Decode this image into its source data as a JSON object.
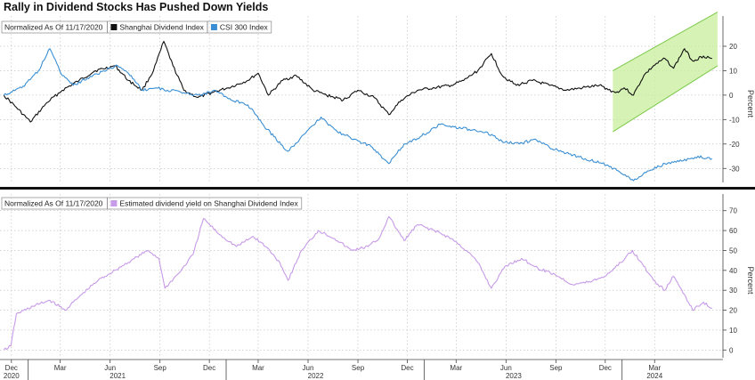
{
  "title": "Rally in Dividend Stocks Has Pushed Down Yields",
  "colors": {
    "shanghai": "#111111",
    "csi": "#3a8fd4",
    "yield": "#c79be8",
    "channel_fill": "#c8ef9c",
    "channel_line": "#7cc94a"
  },
  "chart_data": [
    {
      "type": "line",
      "legend_title": "Normalized As Of 11/17/2020",
      "ylabel": "Percent",
      "ylim": [
        -35,
        28
      ],
      "yticks": [
        -30,
        -20,
        -10,
        0,
        10,
        20
      ],
      "series": [
        {
          "name": "Shanghai Dividend Index",
          "color": "#111111",
          "points": [
            [
              "2020-11-17",
              0
            ],
            [
              "2020-12-10",
              -5
            ],
            [
              "2021-01-05",
              -11
            ],
            [
              "2021-02-05",
              -3
            ],
            [
              "2021-03-05",
              2
            ],
            [
              "2021-04-05",
              6
            ],
            [
              "2021-05-05",
              10
            ],
            [
              "2021-06-10",
              12
            ],
            [
              "2021-07-05",
              6
            ],
            [
              "2021-07-30",
              2
            ],
            [
              "2021-08-20",
              10
            ],
            [
              "2021-09-08",
              22
            ],
            [
              "2021-09-25",
              12
            ],
            [
              "2021-10-15",
              2
            ],
            [
              "2021-11-10",
              -1
            ],
            [
              "2021-12-05",
              1
            ],
            [
              "2022-01-05",
              3
            ],
            [
              "2022-02-10",
              6
            ],
            [
              "2022-03-01",
              9
            ],
            [
              "2022-03-20",
              0
            ],
            [
              "2022-04-15",
              6
            ],
            [
              "2022-05-10",
              8
            ],
            [
              "2022-06-10",
              2
            ],
            [
              "2022-07-05",
              0
            ],
            [
              "2022-08-05",
              -2
            ],
            [
              "2022-09-01",
              2
            ],
            [
              "2022-10-01",
              -1
            ],
            [
              "2022-10-28",
              -8
            ],
            [
              "2022-11-20",
              -2
            ],
            [
              "2022-12-20",
              2
            ],
            [
              "2023-01-20",
              3
            ],
            [
              "2023-02-20",
              4
            ],
            [
              "2023-03-15",
              6
            ],
            [
              "2023-04-10",
              10
            ],
            [
              "2023-05-05",
              17
            ],
            [
              "2023-05-25",
              8
            ],
            [
              "2023-06-20",
              4
            ],
            [
              "2023-07-20",
              6
            ],
            [
              "2023-08-20",
              4
            ],
            [
              "2023-09-20",
              2
            ],
            [
              "2023-10-20",
              3
            ],
            [
              "2023-11-20",
              4
            ],
            [
              "2023-12-20",
              1
            ],
            [
              "2024-01-05",
              3
            ],
            [
              "2024-01-22",
              0
            ],
            [
              "2024-02-10",
              8
            ],
            [
              "2024-02-28",
              12
            ],
            [
              "2024-03-20",
              15
            ],
            [
              "2024-04-05",
              11
            ],
            [
              "2024-04-25",
              19
            ],
            [
              "2024-05-10",
              14
            ],
            [
              "2024-05-30",
              16
            ],
            [
              "2024-06-15",
              15
            ]
          ]
        },
        {
          "name": "CSI 300 Index",
          "color": "#3a8fd4",
          "points": [
            [
              "2020-11-17",
              0
            ],
            [
              "2020-12-20",
              3
            ],
            [
              "2021-01-20",
              10
            ],
            [
              "2021-02-10",
              19
            ],
            [
              "2021-03-05",
              8
            ],
            [
              "2021-03-25",
              4
            ],
            [
              "2021-04-20",
              7
            ],
            [
              "2021-05-20",
              10
            ],
            [
              "2021-06-15",
              12
            ],
            [
              "2021-07-10",
              8
            ],
            [
              "2021-07-30",
              2
            ],
            [
              "2021-08-25",
              3
            ],
            [
              "2021-09-15",
              2
            ],
            [
              "2021-10-15",
              1
            ],
            [
              "2021-11-15",
              0
            ],
            [
              "2021-12-10",
              2
            ],
            [
              "2022-01-10",
              -2
            ],
            [
              "2022-02-10",
              -4
            ],
            [
              "2022-03-10",
              -12
            ],
            [
              "2022-03-30",
              -17
            ],
            [
              "2022-04-25",
              -23
            ],
            [
              "2022-05-25",
              -16
            ],
            [
              "2022-06-25",
              -9
            ],
            [
              "2022-07-25",
              -15
            ],
            [
              "2022-08-25",
              -18
            ],
            [
              "2022-09-25",
              -21
            ],
            [
              "2022-10-28",
              -28
            ],
            [
              "2022-11-25",
              -20
            ],
            [
              "2022-12-25",
              -17
            ],
            [
              "2023-01-30",
              -12
            ],
            [
              "2023-02-25",
              -13
            ],
            [
              "2023-03-25",
              -14
            ],
            [
              "2023-04-25",
              -15
            ],
            [
              "2023-05-25",
              -19
            ],
            [
              "2023-06-25",
              -20
            ],
            [
              "2023-07-25",
              -18
            ],
            [
              "2023-08-25",
              -22
            ],
            [
              "2023-09-25",
              -24
            ],
            [
              "2023-10-25",
              -26
            ],
            [
              "2023-11-25",
              -28
            ],
            [
              "2023-12-25",
              -31
            ],
            [
              "2024-01-22",
              -35
            ],
            [
              "2024-02-20",
              -31
            ],
            [
              "2024-03-20",
              -28
            ],
            [
              "2024-04-20",
              -27
            ],
            [
              "2024-05-20",
              -25
            ],
            [
              "2024-06-15",
              -26
            ]
          ]
        }
      ],
      "channel": {
        "upper": [
          [
            "2023-12-15",
            10
          ],
          [
            "2024-06-25",
            34
          ]
        ],
        "lower": [
          [
            "2023-12-15",
            -15
          ],
          [
            "2024-06-25",
            12
          ]
        ]
      }
    },
    {
      "type": "line",
      "legend_title": "Normalized As Of 11/17/2020",
      "ylabel": "Percent",
      "ylim": [
        -3,
        73
      ],
      "yticks": [
        0,
        10,
        20,
        30,
        40,
        50,
        60,
        70
      ],
      "series": [
        {
          "name": "Estimated dividend yield on Shanghai Dividend Index",
          "color": "#c79be8",
          "points": [
            [
              "2020-11-17",
              0
            ],
            [
              "2020-11-30",
              2
            ],
            [
              "2020-12-10",
              18
            ],
            [
              "2021-01-10",
              22
            ],
            [
              "2021-02-10",
              25
            ],
            [
              "2021-03-10",
              20
            ],
            [
              "2021-04-10",
              28
            ],
            [
              "2021-05-10",
              35
            ],
            [
              "2021-06-10",
              40
            ],
            [
              "2021-07-10",
              45
            ],
            [
              "2021-08-10",
              50
            ],
            [
              "2021-08-30",
              46
            ],
            [
              "2021-09-10",
              31
            ],
            [
              "2021-10-10",
              40
            ],
            [
              "2021-11-01",
              48
            ],
            [
              "2021-11-20",
              66
            ],
            [
              "2021-12-20",
              58
            ],
            [
              "2022-01-20",
              52
            ],
            [
              "2022-02-20",
              57
            ],
            [
              "2022-03-15",
              52
            ],
            [
              "2022-04-10",
              44
            ],
            [
              "2022-04-25",
              35
            ],
            [
              "2022-05-20",
              50
            ],
            [
              "2022-06-20",
              60
            ],
            [
              "2022-07-20",
              56
            ],
            [
              "2022-08-20",
              50
            ],
            [
              "2022-09-20",
              52
            ],
            [
              "2022-10-10",
              56
            ],
            [
              "2022-10-28",
              67
            ],
            [
              "2022-11-25",
              55
            ],
            [
              "2022-12-20",
              63
            ],
            [
              "2023-01-20",
              60
            ],
            [
              "2023-02-20",
              56
            ],
            [
              "2023-03-20",
              50
            ],
            [
              "2023-04-10",
              44
            ],
            [
              "2023-05-05",
              31
            ],
            [
              "2023-05-30",
              42
            ],
            [
              "2023-06-30",
              46
            ],
            [
              "2023-07-30",
              41
            ],
            [
              "2023-08-30",
              38
            ],
            [
              "2023-09-30",
              33
            ],
            [
              "2023-10-30",
              34
            ],
            [
              "2023-11-30",
              37
            ],
            [
              "2023-12-30",
              44
            ],
            [
              "2024-01-20",
              50
            ],
            [
              "2024-02-10",
              42
            ],
            [
              "2024-02-28",
              35
            ],
            [
              "2024-03-20",
              30
            ],
            [
              "2024-04-05",
              37
            ],
            [
              "2024-04-25",
              28
            ],
            [
              "2024-05-10",
              20
            ],
            [
              "2024-05-30",
              24
            ],
            [
              "2024-06-15",
              21
            ]
          ]
        }
      ]
    }
  ],
  "x_axis": {
    "months": [
      {
        "date": "2020-12-01",
        "label": "Dec"
      },
      {
        "date": "2021-03-01",
        "label": "Mar"
      },
      {
        "date": "2021-06-01",
        "label": "Jun"
      },
      {
        "date": "2021-09-01",
        "label": "Sep"
      },
      {
        "date": "2021-12-01",
        "label": "Dec"
      },
      {
        "date": "2022-03-01",
        "label": "Mar"
      },
      {
        "date": "2022-06-01",
        "label": "Jun"
      },
      {
        "date": "2022-09-01",
        "label": "Sep"
      },
      {
        "date": "2022-12-01",
        "label": "Dec"
      },
      {
        "date": "2023-03-01",
        "label": "Mar"
      },
      {
        "date": "2023-06-01",
        "label": "Jun"
      },
      {
        "date": "2023-09-01",
        "label": "Sep"
      },
      {
        "date": "2023-12-01",
        "label": "Dec"
      },
      {
        "date": "2024-03-01",
        "label": "Mar"
      }
    ],
    "years": [
      {
        "date": "2020-12-01",
        "label": "2020"
      },
      {
        "date": "2021-06-15",
        "label": "2021"
      },
      {
        "date": "2022-06-15",
        "label": "2022"
      },
      {
        "date": "2023-06-15",
        "label": "2023"
      },
      {
        "date": "2024-03-01",
        "label": "2024"
      }
    ],
    "range": [
      "2020-11-10",
      "2024-07-05"
    ]
  }
}
